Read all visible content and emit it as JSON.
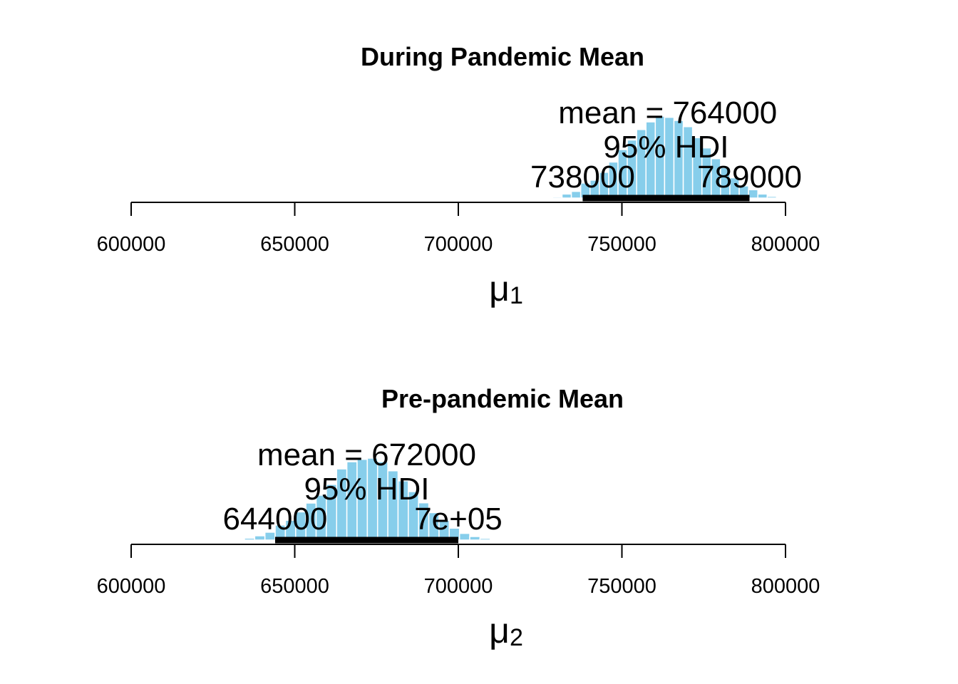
{
  "chart_data": [
    {
      "type": "bar",
      "title": "During Pandemic Mean",
      "xlabel": "μ",
      "xlabel_sub": "1",
      "xlim": [
        600000,
        800000
      ],
      "xticks": [
        600000,
        650000,
        700000,
        750000,
        800000
      ],
      "xtick_labels": [
        "600000",
        "650000",
        "700000",
        "750000",
        "800000"
      ],
      "bin_start": 726000,
      "bin_width": 2850,
      "bar_heights": [
        2,
        5,
        17,
        28,
        63,
        75,
        108,
        151,
        203,
        243,
        287,
        319,
        343,
        338,
        325,
        299,
        253,
        210,
        165,
        128,
        85,
        51,
        35,
        17,
        7,
        2
      ],
      "mean": 764000,
      "mean_label": "mean = 764000",
      "hdi_label": "95% HDI",
      "hdi": [
        738000,
        789000
      ],
      "hdi_low_label": "738000",
      "hdi_high_label": "789000",
      "bar_color": "#87ceeb"
    },
    {
      "type": "bar",
      "title": "Pre-pandemic Mean",
      "xlabel": "μ",
      "xlabel_sub": "2",
      "xlim": [
        600000,
        800000
      ],
      "xticks": [
        600000,
        650000,
        700000,
        750000,
        800000
      ],
      "xtick_labels": [
        "600000",
        "650000",
        "700000",
        "750000",
        "800000"
      ],
      "bin_start": 631500,
      "bin_width": 3130,
      "bar_heights": [
        3,
        8,
        18,
        33,
        63,
        83,
        118,
        155,
        188,
        233,
        298,
        328,
        338,
        343,
        328,
        290,
        248,
        203,
        156,
        115,
        83,
        50,
        28,
        15,
        7,
        3
      ],
      "mean": 672000,
      "mean_label": "mean = 672000",
      "hdi_label": "95% HDI",
      "hdi": [
        644000,
        700000
      ],
      "hdi_low_label": "644000",
      "hdi_high_label": "7e+05",
      "bar_color": "#87ceeb"
    }
  ]
}
